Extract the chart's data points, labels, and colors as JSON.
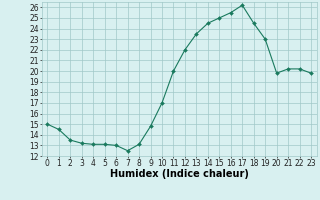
{
  "x_values": [
    0,
    1,
    2,
    3,
    4,
    5,
    6,
    7,
    8,
    9,
    10,
    11,
    12,
    13,
    14,
    15,
    16,
    17,
    18,
    19,
    20,
    21,
    22,
    23
  ],
  "y_values": [
    15,
    14.5,
    13.5,
    13.2,
    13.1,
    13.1,
    13.0,
    12.5,
    13.1,
    14.8,
    17.0,
    20.0,
    22.0,
    23.5,
    24.5,
    25.0,
    25.5,
    26.2,
    24.5,
    23.0,
    19.8,
    20.2,
    20.2,
    19.8
  ],
  "xlim": [
    -0.5,
    23.5
  ],
  "ylim": [
    12,
    26.5
  ],
  "yticks": [
    12,
    13,
    14,
    15,
    16,
    17,
    18,
    19,
    20,
    21,
    22,
    23,
    24,
    25,
    26
  ],
  "xticks": [
    0,
    1,
    2,
    3,
    4,
    5,
    6,
    7,
    8,
    9,
    10,
    11,
    12,
    13,
    14,
    15,
    16,
    17,
    18,
    19,
    20,
    21,
    22,
    23
  ],
  "xlabel": "Humidex (Indice chaleur)",
  "line_color": "#1a7a5e",
  "marker": "D",
  "marker_size": 2.0,
  "bg_color": "#d8f0f0",
  "grid_color": "#a0c8c8",
  "tick_fontsize": 5.5,
  "xlabel_fontsize": 7.0
}
